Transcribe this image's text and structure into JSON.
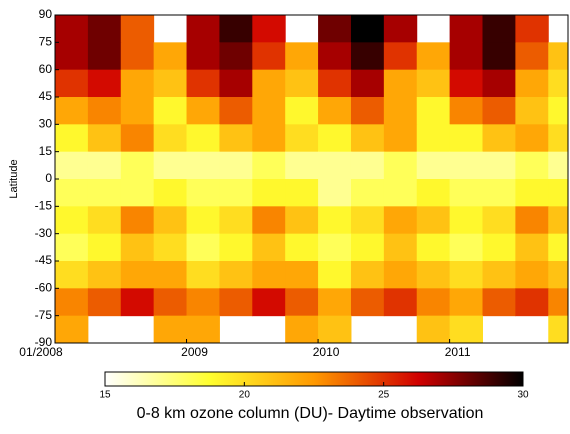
{
  "chart_data": {
    "type": "heatmap",
    "ylabel": "Latitude",
    "colorbar_label": "0-8 km ozone column (DU)- Daytime observation",
    "x": [
      2008.125,
      2008.375,
      2008.625,
      2008.875,
      2009.125,
      2009.375,
      2009.625,
      2009.875,
      2010.125,
      2010.375,
      2010.625,
      2010.875,
      2011.125,
      2011.375,
      2011.625,
      2011.875
    ],
    "y": [
      82.5,
      67.5,
      52.5,
      37.5,
      22.5,
      7.5,
      -7.5,
      -22.5,
      -37.5,
      -52.5,
      -67.5,
      -82.5
    ],
    "z": [
      [
        27,
        28,
        24,
        null,
        27,
        29,
        26,
        null,
        28,
        30,
        27,
        null,
        27,
        29,
        25,
        null
      ],
      [
        27,
        28,
        24,
        22,
        27,
        28,
        25,
        22,
        27,
        29,
        25,
        22,
        27,
        29,
        24,
        21
      ],
      [
        25,
        26,
        22,
        21,
        25,
        27,
        22,
        21,
        25,
        27,
        22,
        21,
        26,
        27,
        22,
        20
      ],
      [
        22,
        23,
        22,
        19,
        22,
        24,
        22,
        19,
        22,
        24,
        22,
        19,
        23,
        24,
        21,
        19
      ],
      [
        19,
        21,
        23,
        20,
        19,
        21,
        22,
        20,
        19,
        21,
        22,
        19,
        19,
        21,
        22,
        20
      ],
      [
        17,
        17,
        18,
        17,
        17,
        17,
        18,
        17,
        17,
        17,
        18,
        17,
        17,
        17,
        18,
        17
      ],
      [
        18,
        18,
        18,
        19,
        18,
        18,
        19,
        19,
        17,
        18,
        18,
        19,
        18,
        18,
        19,
        19
      ],
      [
        19,
        20,
        23,
        21,
        19,
        20,
        23,
        21,
        19,
        20,
        22,
        21,
        19,
        20,
        23,
        21
      ],
      [
        18,
        19,
        21,
        20,
        18,
        19,
        21,
        19,
        18,
        19,
        21,
        19,
        18,
        19,
        21,
        19
      ],
      [
        20,
        21,
        22,
        22,
        20,
        21,
        22,
        22,
        19,
        21,
        22,
        21,
        20,
        21,
        22,
        21
      ],
      [
        23,
        24,
        26,
        24,
        23,
        24,
        26,
        24,
        22,
        24,
        25,
        23,
        22,
        24,
        25,
        23
      ],
      [
        22,
        null,
        null,
        22,
        22,
        null,
        null,
        22,
        21,
        null,
        null,
        21,
        20,
        null,
        null,
        20
      ]
    ],
    "xlim": [
      2008,
      2011.9
    ],
    "xticks": [
      {
        "value": 2008,
        "label": "01/2008"
      },
      {
        "value": 2009,
        "label": "2009"
      },
      {
        "value": 2010,
        "label": "2010"
      },
      {
        "value": 2011,
        "label": "2011"
      }
    ],
    "ylim": [
      -90,
      90
    ],
    "yticks": [
      -90,
      -75,
      -60,
      -45,
      -30,
      -15,
      0,
      15,
      30,
      45,
      60,
      75,
      90
    ],
    "zlim": [
      15,
      30
    ],
    "zticks": [
      15,
      20,
      25,
      30
    ],
    "colors": [
      "#ffffff",
      "#ffff30",
      "#ff9900",
      "#d00000",
      "#000000"
    ]
  }
}
